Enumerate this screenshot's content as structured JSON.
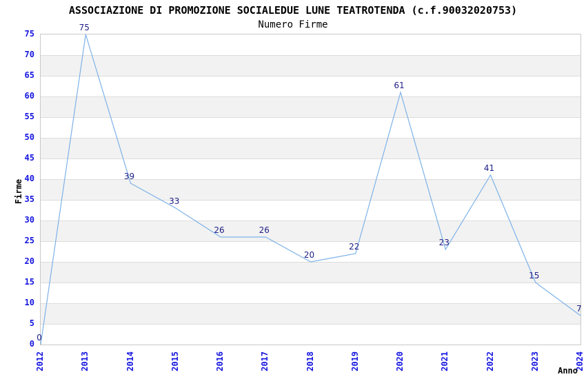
{
  "chart_data": {
    "type": "line",
    "title": "ASSOCIAZIONE DI PROMOZIONE SOCIALEDUE LUNE TEATROTENDA (c.f.90032020753)",
    "subtitle": "Numero Firme",
    "xlabel": "Anno",
    "ylabel": "Firme",
    "x": [
      "2012",
      "2013",
      "2014",
      "2015",
      "2016",
      "2017",
      "2018",
      "2019",
      "2020",
      "2021",
      "2022",
      "2023",
      "2024"
    ],
    "values": [
      0,
      75,
      39,
      33,
      26,
      26,
      20,
      22,
      61,
      23,
      41,
      15,
      7
    ],
    "point_labels": [
      "0",
      "75",
      "39",
      "33",
      "26",
      "26",
      "20",
      "22",
      "61",
      "23",
      "41",
      "15",
      "7"
    ],
    "ylim": [
      0,
      75
    ],
    "ytick_step": 5,
    "yticks": [
      0,
      5,
      10,
      15,
      20,
      25,
      30,
      35,
      40,
      45,
      50,
      55,
      60,
      65,
      70,
      75
    ],
    "grid": "horizontal-stripes",
    "legend_position": "none",
    "colors": {
      "line": "#7db2e8",
      "tick_label": "#1414e0",
      "data_label": "#202088",
      "stripe": "#f2f2f2",
      "gridline": "#dcdcdc",
      "plot_border": "#c8c8c8",
      "title": "#000000"
    }
  }
}
